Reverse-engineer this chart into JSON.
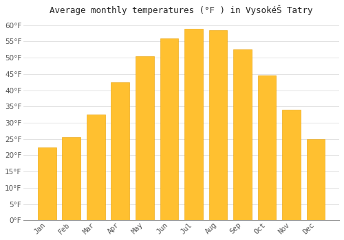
{
  "title": "Average monthly temperatures (°F ) in VysokéŠ Tatry",
  "months": [
    "Jan",
    "Feb",
    "Mar",
    "Apr",
    "May",
    "Jun",
    "Jul",
    "Aug",
    "Sep",
    "Oct",
    "Nov",
    "Dec"
  ],
  "values": [
    22.5,
    25.5,
    32.5,
    42.5,
    50.5,
    56.0,
    59.0,
    58.5,
    52.5,
    44.5,
    34.0,
    25.0
  ],
  "bar_color_top": "#FFA500",
  "bar_color_bottom": "#FFD700",
  "bar_color": "#FFC030",
  "bar_edge_color": "#E8A000",
  "background_color": "#FFFFFF",
  "grid_color": "#DDDDDD",
  "text_color": "#555555",
  "ylim": [
    0,
    62
  ],
  "yticks": [
    0,
    5,
    10,
    15,
    20,
    25,
    30,
    35,
    40,
    45,
    50,
    55,
    60
  ],
  "title_fontsize": 9,
  "tick_fontsize": 7.5,
  "font_family": "monospace"
}
